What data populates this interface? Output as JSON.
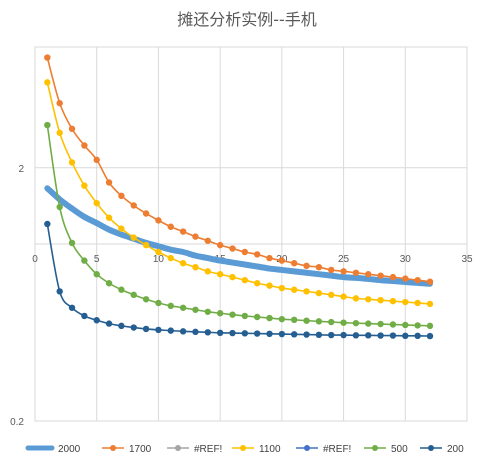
{
  "chart_data": {
    "type": "line",
    "title": "摊还分析实例--手机",
    "xlim": [
      0,
      35
    ],
    "x_ticks": [
      0,
      5,
      10,
      15,
      20,
      25,
      30,
      35
    ],
    "y_scale": "log",
    "y_ticks": [
      {
        "value": 2,
        "label": "2"
      },
      {
        "value": 0.2,
        "label": "0.2"
      }
    ],
    "x_axis_crosses_y": 1,
    "grid": true,
    "legend_position": "bottom",
    "series": [
      {
        "name": "2000",
        "color": "#5b9bd5",
        "style": "thick",
        "x": [
          1,
          2,
          3,
          4,
          5,
          6,
          7,
          8,
          9,
          10,
          11,
          12,
          13,
          14,
          15,
          16,
          17,
          18,
          19,
          20,
          21,
          22,
          23,
          24,
          25,
          26,
          27,
          28,
          29,
          30,
          31,
          32
        ],
        "values": [
          1.66,
          1.5,
          1.38,
          1.28,
          1.21,
          1.14,
          1.09,
          1.05,
          1.01,
          0.98,
          0.95,
          0.93,
          0.9,
          0.88,
          0.86,
          0.845,
          0.83,
          0.815,
          0.8,
          0.79,
          0.78,
          0.77,
          0.76,
          0.75,
          0.74,
          0.735,
          0.728,
          0.72,
          0.714,
          0.708,
          0.702,
          0.697
        ]
      },
      {
        "name": "1700",
        "color": "#ed7d31",
        "style": "marker",
        "x": [
          1,
          2,
          3,
          4,
          5,
          6,
          7,
          8,
          9,
          10,
          11,
          12,
          13,
          14,
          15,
          16,
          17,
          18,
          19,
          20,
          21,
          22,
          23,
          24,
          25,
          26,
          27,
          28,
          29,
          30,
          31,
          32
        ],
        "values": [
          5.45,
          3.6,
          2.85,
          2.45,
          2.15,
          1.75,
          1.55,
          1.42,
          1.32,
          1.24,
          1.17,
          1.12,
          1.07,
          1.03,
          0.99,
          0.96,
          0.93,
          0.91,
          0.88,
          0.86,
          0.84,
          0.82,
          0.81,
          0.79,
          0.78,
          0.77,
          0.76,
          0.75,
          0.74,
          0.73,
          0.72,
          0.71
        ]
      },
      {
        "name": "#REF!",
        "color": "#a5a5a5",
        "style": "none",
        "x": [],
        "values": []
      },
      {
        "name": "1100",
        "color": "#ffc000",
        "style": "marker",
        "x": [
          1,
          2,
          3,
          4,
          5,
          6,
          7,
          8,
          9,
          10,
          11,
          12,
          13,
          14,
          15,
          16,
          17,
          18,
          19,
          20,
          21,
          22,
          23,
          24,
          25,
          26,
          27,
          28,
          29,
          30,
          31,
          32
        ],
        "values": [
          4.35,
          2.75,
          2.1,
          1.7,
          1.45,
          1.27,
          1.15,
          1.06,
          0.99,
          0.93,
          0.88,
          0.84,
          0.81,
          0.78,
          0.76,
          0.74,
          0.72,
          0.7,
          0.685,
          0.67,
          0.66,
          0.65,
          0.64,
          0.63,
          0.62,
          0.61,
          0.605,
          0.6,
          0.595,
          0.59,
          0.585,
          0.58
        ]
      },
      {
        "name": "#REF!",
        "color": "#4472c4",
        "style": "none",
        "x": [],
        "values": []
      },
      {
        "name": "500",
        "color": "#70ad47",
        "style": "marker",
        "x": [
          1,
          2,
          3,
          4,
          5,
          6,
          7,
          8,
          9,
          10,
          11,
          12,
          13,
          14,
          15,
          16,
          17,
          18,
          19,
          20,
          21,
          22,
          23,
          24,
          25,
          26,
          27,
          28,
          29,
          30,
          31,
          32
        ],
        "values": [
          2.95,
          1.4,
          1.01,
          0.86,
          0.76,
          0.7,
          0.66,
          0.63,
          0.605,
          0.585,
          0.57,
          0.56,
          0.55,
          0.54,
          0.533,
          0.526,
          0.52,
          0.515,
          0.51,
          0.505,
          0.502,
          0.498,
          0.495,
          0.492,
          0.489,
          0.487,
          0.485,
          0.483,
          0.481,
          0.479,
          0.477,
          0.475
        ]
      },
      {
        "name": "200",
        "color": "#255e91",
        "style": "marker",
        "x": [
          1,
          2,
          3,
          4,
          5,
          6,
          7,
          8,
          9,
          10,
          11,
          12,
          13,
          14,
          15,
          16,
          17,
          18,
          19,
          20,
          21,
          22,
          23,
          24,
          25,
          26,
          27,
          28,
          29,
          30,
          31,
          32
        ],
        "values": [
          1.2,
          0.65,
          0.56,
          0.52,
          0.5,
          0.485,
          0.475,
          0.468,
          0.462,
          0.458,
          0.455,
          0.452,
          0.45,
          0.448,
          0.446,
          0.445,
          0.444,
          0.443,
          0.442,
          0.441,
          0.44,
          0.439,
          0.438,
          0.437,
          0.437,
          0.436,
          0.436,
          0.435,
          0.435,
          0.434,
          0.434,
          0.433
        ]
      }
    ]
  }
}
